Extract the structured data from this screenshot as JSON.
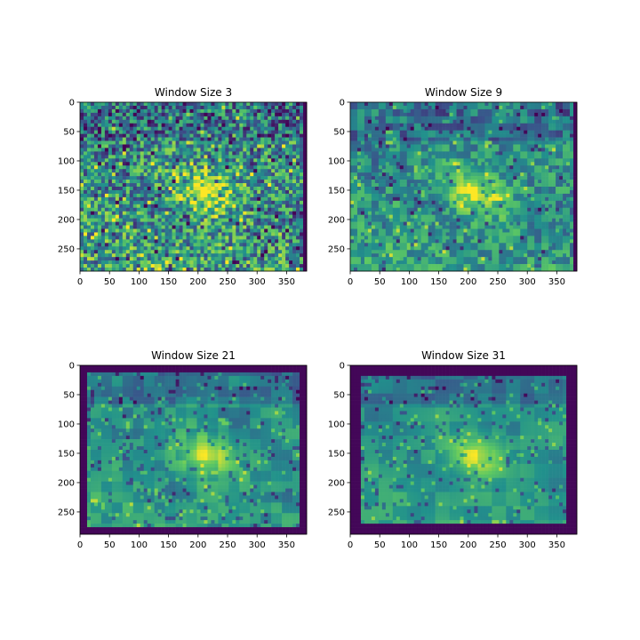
{
  "figure": {
    "colormap": "viridis",
    "palette": [
      "#440154",
      "#3b528b",
      "#21918c",
      "#5ec962",
      "#fde725"
    ]
  },
  "chart_data": [
    {
      "type": "heatmap",
      "title": "Window Size 3",
      "xlim": [
        0,
        384
      ],
      "ylim": [
        288,
        0
      ],
      "xticks": [
        "0",
        "50",
        "100",
        "150",
        "200",
        "250",
        "300",
        "350"
      ],
      "yticks": [
        "0",
        "50",
        "100",
        "150",
        "200",
        "250"
      ],
      "xtick_values": [
        0,
        50,
        100,
        150,
        200,
        250,
        300,
        350
      ],
      "ytick_values": [
        0,
        50,
        100,
        150,
        200,
        250
      ],
      "texture": "noisy",
      "border_cols": 4,
      "border_rows": 0
    },
    {
      "type": "heatmap",
      "title": "Window Size 9",
      "xlim": [
        0,
        384
      ],
      "ylim": [
        288,
        0
      ],
      "xticks": [
        "0",
        "50",
        "100",
        "150",
        "200",
        "250",
        "300",
        "350"
      ],
      "yticks": [
        "0",
        "50",
        "100",
        "150",
        "200",
        "250"
      ],
      "xtick_values": [
        0,
        50,
        100,
        150,
        200,
        250,
        300,
        350
      ],
      "ytick_values": [
        0,
        50,
        100,
        150,
        200,
        250
      ],
      "texture": "medium",
      "border_cols": 8,
      "border_rows": 0
    },
    {
      "type": "heatmap",
      "title": "Window Size 21",
      "xlim": [
        0,
        384
      ],
      "ylim": [
        288,
        0
      ],
      "xticks": [
        "0",
        "50",
        "100",
        "150",
        "200",
        "250",
        "300",
        "350"
      ],
      "yticks": [
        "0",
        "50",
        "100",
        "150",
        "200",
        "250"
      ],
      "xtick_values": [
        0,
        50,
        100,
        150,
        200,
        250,
        300,
        350
      ],
      "ytick_values": [
        0,
        50,
        100,
        150,
        200,
        250
      ],
      "texture": "smooth",
      "border_cols": 10,
      "border_rows": 10
    },
    {
      "type": "heatmap",
      "title": "Window Size 31",
      "xlim": [
        0,
        384
      ],
      "ylim": [
        288,
        0
      ],
      "xticks": [
        "0",
        "50",
        "100",
        "150",
        "200",
        "250",
        "300",
        "350"
      ],
      "yticks": [
        "0",
        "50",
        "100",
        "150",
        "200",
        "250"
      ],
      "xtick_values": [
        0,
        50,
        100,
        150,
        200,
        250,
        300,
        350
      ],
      "ytick_values": [
        0,
        50,
        100,
        150,
        200,
        250
      ],
      "texture": "smoother",
      "border_cols": 15,
      "border_rows": 15
    }
  ]
}
